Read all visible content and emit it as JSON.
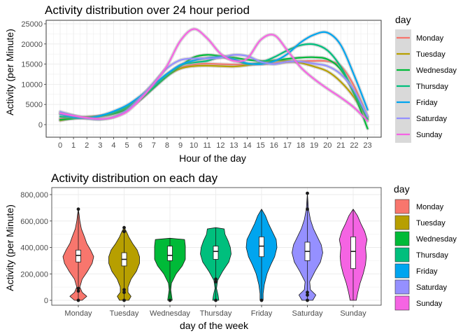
{
  "colors": {
    "Monday": "#F8766D",
    "Tuesday": "#B79F00",
    "Wednesday": "#00BA38",
    "Thursday": "#00BF7D",
    "Friday": "#00A5EF",
    "Saturday": "#9590FF",
    "Sunday": "#F564E3"
  },
  "chart_data": [
    {
      "type": "line",
      "title": "Activity distribution over 24 hour period",
      "xlabel": "Hour of the day",
      "ylabel": "Activity (per Minute)",
      "xlim": [
        0,
        23
      ],
      "ylim": [
        -2500,
        25500
      ],
      "xticks": [
        0,
        1,
        2,
        3,
        4,
        5,
        6,
        7,
        8,
        9,
        10,
        11,
        12,
        13,
        14,
        15,
        16,
        17,
        18,
        19,
        20,
        21,
        22,
        23
      ],
      "yticks": [
        0,
        5000,
        10000,
        15000,
        20000,
        25000
      ],
      "ytick_labels": [
        "0",
        "5000",
        "10000",
        "15000",
        "20000",
        "25000"
      ],
      "grid": true,
      "legend": {
        "title": "day",
        "position": "right"
      },
      "x": [
        0,
        1,
        2,
        3,
        4,
        5,
        6,
        7,
        8,
        9,
        10,
        11,
        12,
        13,
        14,
        15,
        16,
        17,
        18,
        19,
        20,
        21,
        22,
        23
      ],
      "series": [
        {
          "name": "Monday",
          "values": [
            1500,
            1700,
            1800,
            2100,
            2700,
            3800,
            6200,
            9300,
            12400,
            14100,
            14900,
            15100,
            15000,
            14900,
            14900,
            15000,
            15200,
            15500,
            15700,
            15800,
            15700,
            14500,
            9500,
            1900
          ]
        },
        {
          "name": "Tuesday",
          "values": [
            1000,
            1600,
            1900,
            2100,
            2800,
            4100,
            6400,
            9300,
            12100,
            13900,
            14500,
            14600,
            14500,
            14400,
            14700,
            15300,
            15800,
            15800,
            15300,
            14400,
            13200,
            10600,
            6700,
            1300
          ]
        },
        {
          "name": "Wednesday",
          "values": [
            1200,
            1500,
            1800,
            2100,
            2700,
            3900,
            6200,
            9100,
            12000,
            14500,
            16700,
            17300,
            17000,
            16600,
            16100,
            15800,
            15900,
            16300,
            16600,
            16700,
            16200,
            13600,
            7500,
            -1000
          ]
        },
        {
          "name": "Thursday",
          "values": [
            2000,
            1800,
            1700,
            2100,
            3000,
            4400,
            6600,
            9300,
            12400,
            14700,
            15400,
            15800,
            16700,
            16100,
            15000,
            15400,
            16700,
            18400,
            19700,
            19900,
            18400,
            14300,
            7900,
            1400
          ]
        },
        {
          "name": "Friday",
          "values": [
            2600,
            1800,
            1600,
            2200,
            3300,
            4800,
            7100,
            9900,
            12600,
            14800,
            15900,
            16500,
            16800,
            16200,
            15200,
            15000,
            15700,
            17500,
            20400,
            22300,
            22800,
            19700,
            12200,
            3700
          ]
        },
        {
          "name": "Saturday",
          "values": [
            3200,
            2300,
            1500,
            1300,
            1900,
            3600,
            6700,
            10400,
            14000,
            16000,
            16400,
            16400,
            16600,
            17300,
            17000,
            15600,
            15000,
            15600,
            15600,
            15100,
            14500,
            12500,
            8500,
            2000
          ]
        },
        {
          "name": "Sunday",
          "values": [
            2800,
            2200,
            1700,
            1400,
            1800,
            3200,
            6300,
            10100,
            14600,
            20800,
            23700,
            21400,
            17600,
            15800,
            16400,
            21000,
            22200,
            18400,
            14200,
            11300,
            8900,
            6700,
            4200,
            900
          ]
        }
      ]
    },
    {
      "type": "violin",
      "title": "Activity distribution on each day",
      "xlabel": "day of the week",
      "ylabel": "Activity (per Minute)",
      "categories": [
        "Monday",
        "Tuesday",
        "Wednesday",
        "Thursday",
        "Friday",
        "Saturday",
        "Sunday"
      ],
      "ylim": [
        -20000,
        830000
      ],
      "yticks": [
        0,
        200000,
        400000,
        600000,
        800000
      ],
      "ytick_labels": [
        "0",
        "200,000",
        "400,000",
        "600,000",
        "800,000"
      ],
      "grid": true,
      "legend": {
        "title": "day",
        "position": "right"
      },
      "series": [
        {
          "name": "Monday",
          "min": 0,
          "max": 690000,
          "q1": 290000,
          "median": 340000,
          "q3": 380000,
          "outliers": [
            0,
            690000,
            90000,
            70000
          ],
          "density": [
            [
              0,
              0.25
            ],
            [
              30000,
              0.55
            ],
            [
              60000,
              0.25
            ],
            [
              100000,
              0.1
            ],
            [
              160000,
              0.25
            ],
            [
              220000,
              0.6
            ],
            [
              280000,
              0.9
            ],
            [
              330000,
              1
            ],
            [
              380000,
              0.8
            ],
            [
              430000,
              0.55
            ],
            [
              480000,
              0.4
            ],
            [
              540000,
              0.2
            ],
            [
              600000,
              0.1
            ],
            [
              650000,
              0.05
            ],
            [
              690000,
              0
            ]
          ]
        },
        {
          "name": "Tuesday",
          "min": 0,
          "max": 550000,
          "q1": 260000,
          "median": 310000,
          "q3": 360000,
          "outliers": [
            0,
            550000,
            520000,
            80000,
            60000
          ],
          "density": [
            [
              0,
              0.3
            ],
            [
              30000,
              0.45
            ],
            [
              60000,
              0.25
            ],
            [
              100000,
              0.25
            ],
            [
              160000,
              0.45
            ],
            [
              220000,
              0.8
            ],
            [
              280000,
              1
            ],
            [
              330000,
              1
            ],
            [
              380000,
              0.85
            ],
            [
              430000,
              0.55
            ],
            [
              480000,
              0.3
            ],
            [
              520000,
              0.15
            ],
            [
              550000,
              0
            ]
          ]
        },
        {
          "name": "Wednesday",
          "min": 0,
          "max": 470000,
          "q1": 300000,
          "median": 340000,
          "q3": 410000,
          "outliers": [
            0
          ],
          "density": [
            [
              0,
              0.15
            ],
            [
              40000,
              0.1
            ],
            [
              80000,
              0.05
            ],
            [
              130000,
              0.1
            ],
            [
              200000,
              0.4
            ],
            [
              260000,
              0.8
            ],
            [
              310000,
              1
            ],
            [
              360000,
              1
            ],
            [
              410000,
              1
            ],
            [
              460000,
              0.95
            ],
            [
              470000,
              0
            ]
          ]
        },
        {
          "name": "Thursday",
          "min": 0,
          "max": 550000,
          "q1": 310000,
          "median": 370000,
          "q3": 410000,
          "outliers": [
            0,
            160000,
            140000
          ],
          "density": [
            [
              0,
              0.2
            ],
            [
              40000,
              0.15
            ],
            [
              90000,
              0.05
            ],
            [
              150000,
              0.12
            ],
            [
              220000,
              0.45
            ],
            [
              290000,
              0.85
            ],
            [
              350000,
              1
            ],
            [
              400000,
              0.95
            ],
            [
              450000,
              0.8
            ],
            [
              500000,
              0.6
            ],
            [
              540000,
              0.55
            ],
            [
              550000,
              0
            ]
          ]
        },
        {
          "name": "Friday",
          "min": 0,
          "max": 690000,
          "q1": 330000,
          "median": 410000,
          "q3": 480000,
          "outliers": [
            0
          ],
          "density": [
            [
              0,
              0.1
            ],
            [
              50000,
              0.1
            ],
            [
              120000,
              0.18
            ],
            [
              200000,
              0.35
            ],
            [
              270000,
              0.6
            ],
            [
              330000,
              0.85
            ],
            [
              400000,
              1
            ],
            [
              460000,
              0.95
            ],
            [
              520000,
              0.7
            ],
            [
              580000,
              0.45
            ],
            [
              640000,
              0.25
            ],
            [
              690000,
              0
            ]
          ]
        },
        {
          "name": "Saturday",
          "min": 0,
          "max": 810000,
          "q1": 300000,
          "median": 370000,
          "q3": 440000,
          "outliers": [
            0,
            810000,
            690000,
            60000,
            40000
          ],
          "density": [
            [
              0,
              0.35
            ],
            [
              40000,
              0.55
            ],
            [
              80000,
              0.2
            ],
            [
              140000,
              0.15
            ],
            [
              220000,
              0.5
            ],
            [
              290000,
              0.85
            ],
            [
              360000,
              1
            ],
            [
              420000,
              0.9
            ],
            [
              480000,
              0.65
            ],
            [
              540000,
              0.4
            ],
            [
              610000,
              0.2
            ],
            [
              690000,
              0.07
            ],
            [
              760000,
              0.03
            ],
            [
              810000,
              0
            ]
          ]
        },
        {
          "name": "Sunday",
          "min": 0,
          "max": 690000,
          "q1": 240000,
          "median": 370000,
          "q3": 480000,
          "outliers": [],
          "density": [
            [
              0,
              0.2
            ],
            [
              60000,
              0.3
            ],
            [
              130000,
              0.45
            ],
            [
              200000,
              0.65
            ],
            [
              270000,
              0.8
            ],
            [
              330000,
              0.85
            ],
            [
              400000,
              0.8
            ],
            [
              460000,
              0.9
            ],
            [
              520000,
              0.75
            ],
            [
              580000,
              0.5
            ],
            [
              640000,
              0.28
            ],
            [
              690000,
              0
            ]
          ]
        }
      ]
    }
  ]
}
